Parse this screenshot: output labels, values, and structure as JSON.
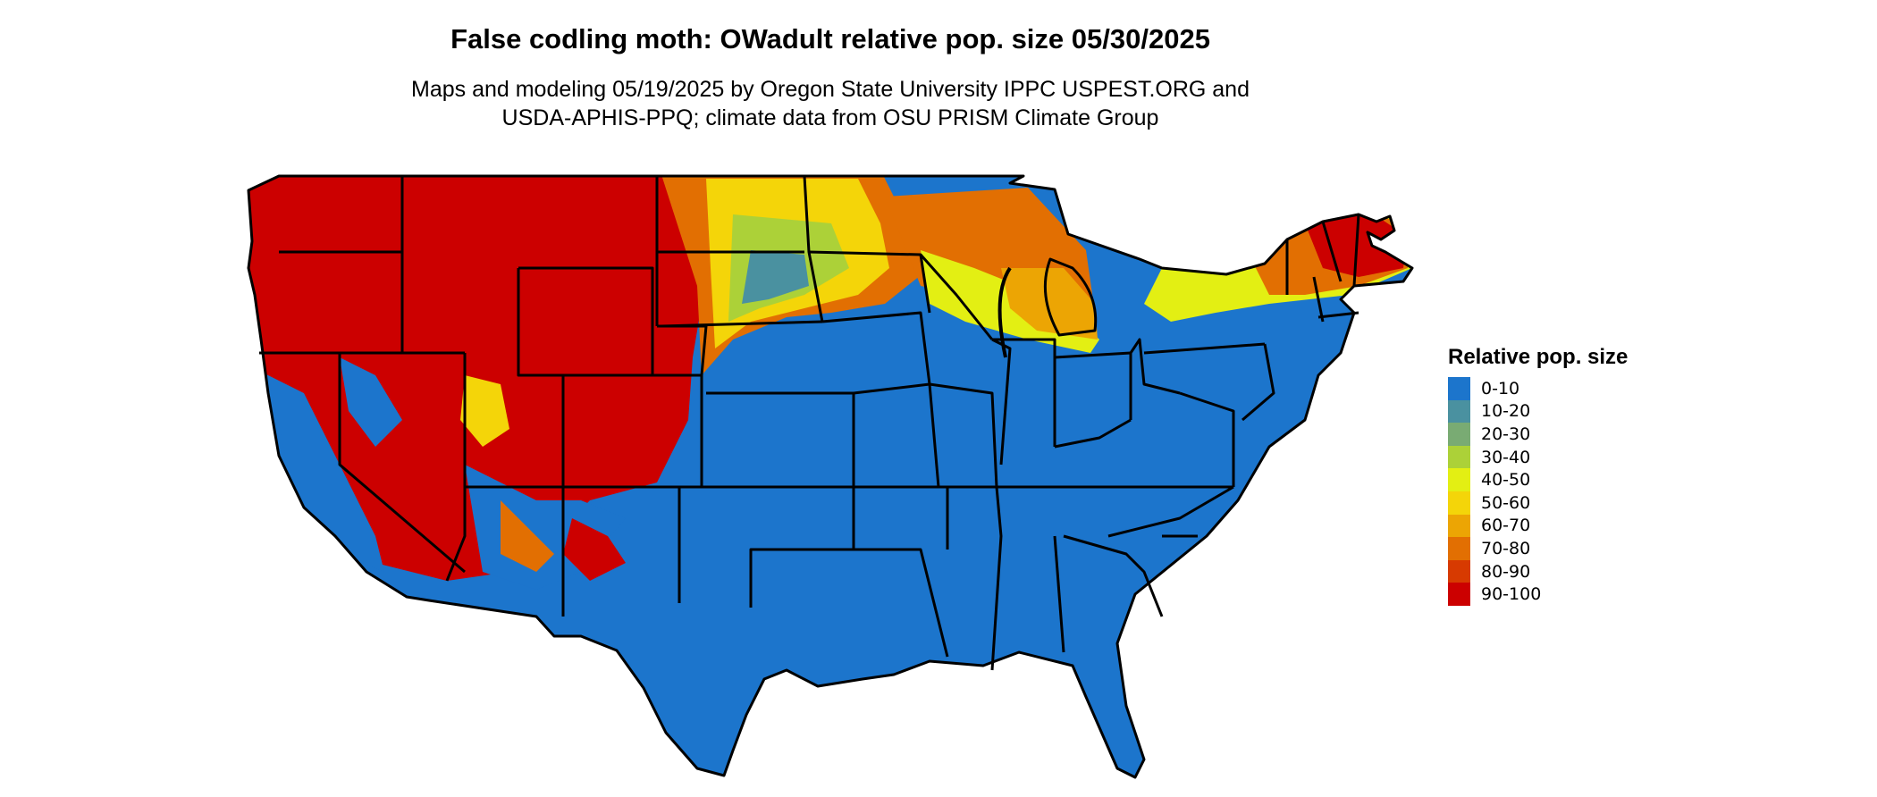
{
  "title": "False codling moth: OWadult relative pop. size 05/30/2025",
  "subtitle_line1": "Maps and modeling 05/19/2025 by Oregon State University IPPC USPEST.ORG and",
  "subtitle_line2": "USDA-APHIS-PPQ; climate data from OSU PRISM Climate Group",
  "legend": {
    "title": "Relative pop. size",
    "items": [
      {
        "label": "0-10",
        "color": "#1c75cc"
      },
      {
        "label": "10-20",
        "color": "#4a91a0"
      },
      {
        "label": "20-30",
        "color": "#79ab73"
      },
      {
        "label": "30-40",
        "color": "#acd138"
      },
      {
        "label": "40-50",
        "color": "#e3ef13"
      },
      {
        "label": "50-60",
        "color": "#f4d509"
      },
      {
        "label": "60-70",
        "color": "#eca504"
      },
      {
        "label": "70-80",
        "color": "#e26f02"
      },
      {
        "label": "80-90",
        "color": "#d73a01"
      },
      {
        "label": "90-100",
        "color": "#cc0000"
      }
    ]
  }
}
